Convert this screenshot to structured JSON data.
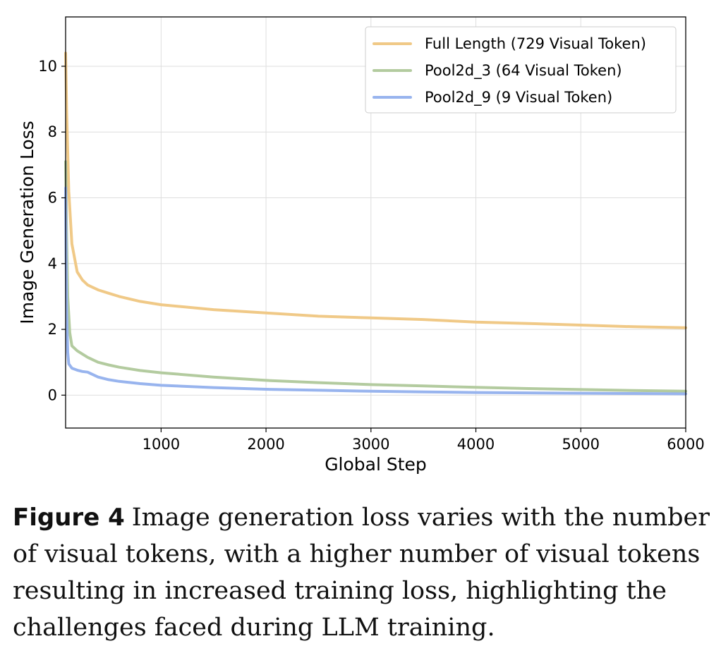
{
  "chart_data": {
    "type": "line",
    "xlabel": "Global Step",
    "ylabel": "Image Generation Loss",
    "xlim": [
      90,
      6000
    ],
    "ylim": [
      -1,
      11.5
    ],
    "xticks": [
      1000,
      2000,
      3000,
      4000,
      5000,
      6000
    ],
    "yticks": [
      0,
      2,
      4,
      6,
      8,
      10
    ],
    "grid": true,
    "legend_position": "top-right",
    "series": [
      {
        "name": "Full Length (729 Visual Token)",
        "color": "#f0c987",
        "x": [
          90,
          100,
          120,
          150,
          200,
          250,
          300,
          400,
          500,
          600,
          800,
          1000,
          1500,
          2000,
          2500,
          3000,
          3500,
          4000,
          4500,
          5000,
          5500,
          6000
        ],
        "y": [
          10.4,
          8.6,
          6.2,
          4.6,
          3.75,
          3.5,
          3.35,
          3.2,
          3.1,
          3.0,
          2.85,
          2.75,
          2.6,
          2.5,
          2.4,
          2.35,
          2.3,
          2.22,
          2.18,
          2.13,
          2.08,
          2.05
        ]
      },
      {
        "name": "Pool2d_3 (64 Visual Token)",
        "color": "#b3cb9f",
        "x": [
          90,
          100,
          110,
          130,
          150,
          200,
          250,
          300,
          400,
          500,
          600,
          800,
          1000,
          1500,
          2000,
          2500,
          3000,
          3500,
          4000,
          4500,
          5000,
          5500,
          6000
        ],
        "y": [
          7.1,
          4.8,
          3.0,
          1.9,
          1.5,
          1.35,
          1.25,
          1.15,
          1.0,
          0.92,
          0.85,
          0.75,
          0.68,
          0.55,
          0.45,
          0.38,
          0.32,
          0.28,
          0.24,
          0.2,
          0.17,
          0.14,
          0.12
        ]
      },
      {
        "name": "Pool2d_9 (9 Visual Token)",
        "color": "#98b4ee",
        "x": [
          90,
          95,
          100,
          110,
          120,
          150,
          200,
          250,
          300,
          400,
          500,
          600,
          800,
          1000,
          1500,
          2000,
          2500,
          3000,
          3500,
          4000,
          4500,
          5000,
          5500,
          6000
        ],
        "y": [
          6.3,
          4.2,
          2.5,
          1.3,
          0.95,
          0.82,
          0.76,
          0.72,
          0.7,
          0.55,
          0.47,
          0.42,
          0.35,
          0.3,
          0.23,
          0.18,
          0.15,
          0.12,
          0.1,
          0.08,
          0.07,
          0.06,
          0.05,
          0.04
        ]
      }
    ]
  },
  "caption": {
    "label": "Figure 4",
    "text": "Image generation loss varies with the number of visual tokens, with a higher number of visual tokens resulting in increased training loss, highlighting the challenges faced during LLM training."
  }
}
